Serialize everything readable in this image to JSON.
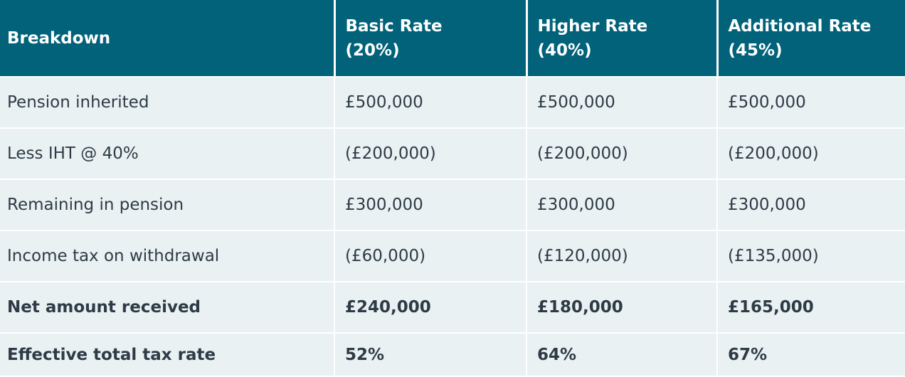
{
  "table": {
    "header": [
      "Breakdown",
      [
        "Basic Rate",
        "(20%)"
      ],
      [
        "Higher Rate",
        "(40%)"
      ],
      [
        "Additional Rate",
        "(45%)"
      ]
    ],
    "rows": [
      [
        "Pension inherited",
        "£500,000",
        "£500,000",
        "£500,000"
      ],
      [
        "Less IHT @ 40%",
        "(£200,000)",
        "(£200,000)",
        "(£200,000)"
      ],
      [
        "Remaining in pension",
        "£300,000",
        "£300,000",
        "£300,000"
      ],
      [
        "Income tax on withdrawal",
        "(£60,000)",
        "(£120,000)",
        "(£135,000)"
      ],
      [
        "Net amount received",
        "£240,000",
        "£180,000",
        "£165,000"
      ],
      [
        "Effective total tax rate",
        "52%",
        "64%",
        "67%"
      ]
    ]
  }
}
